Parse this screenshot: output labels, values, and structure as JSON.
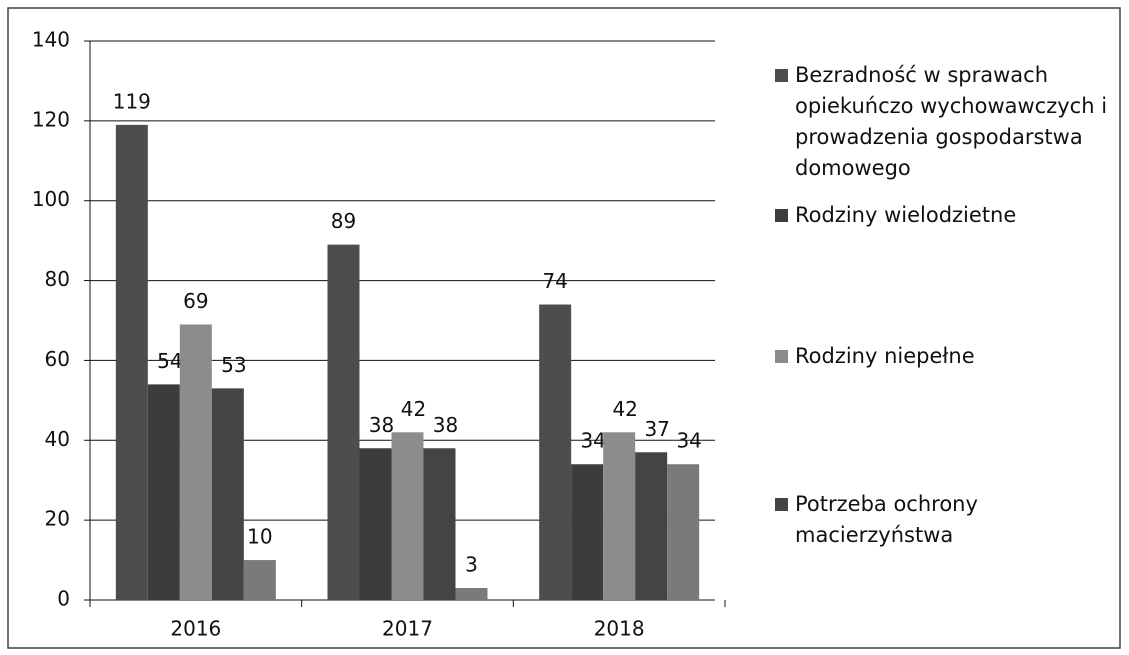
{
  "chart_data": {
    "type": "bar",
    "categories": [
      "2016",
      "2017",
      "2018"
    ],
    "series": [
      {
        "name": "Bezradność w sprawach opiekuńczo wychowawczych i prowadzenia gospodarstwa domowego",
        "color": "#4d4d4d",
        "values": [
          119,
          89,
          74
        ]
      },
      {
        "name": "Rodziny wielodzietne",
        "color": "#3c3c3c",
        "values": [
          54,
          38,
          34
        ]
      },
      {
        "name": "Rodziny niepełne",
        "color": "#8c8c8c",
        "values": [
          69,
          42,
          42
        ]
      },
      {
        "name": "Potrzeba ochrony macierzyństwa",
        "color": "#444444",
        "values": [
          53,
          38,
          37
        ]
      },
      {
        "color": "#7a7a7a",
        "values": [
          10,
          3,
          34
        ]
      }
    ],
    "ylim": [
      0,
      140
    ],
    "yticks": [
      0,
      20,
      40,
      60,
      80,
      100,
      120,
      140
    ],
    "grid": true
  }
}
